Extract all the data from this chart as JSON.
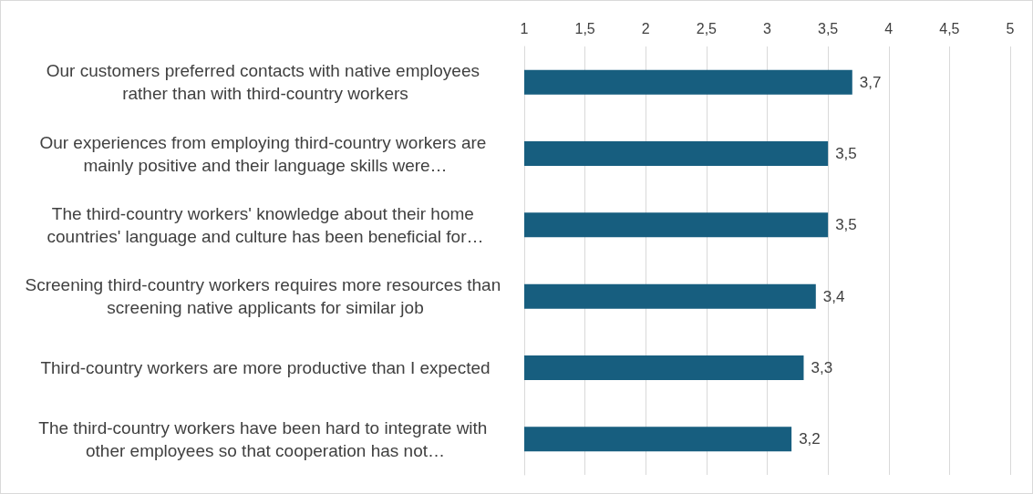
{
  "chart_data": {
    "type": "bar",
    "orientation": "horizontal",
    "categories": [
      "Our customers preferred contacts with native employees rather than with third-country workers",
      "Our experiences from employing third-country workers are mainly positive and their language skills were…",
      "The third-country workers' knowledge about their home countries' language and culture has been beneficial for…",
      "Screening third-country workers requires more resources than screening native applicants for similar job",
      "Third-country workers are more productive than I expected",
      "The third-country workers have been hard to integrate with other employees so that cooperation has not…"
    ],
    "values": [
      3.7,
      3.5,
      3.5,
      3.4,
      3.3,
      3.2
    ],
    "value_labels": [
      "3,7",
      "3,5",
      "3,5",
      "3,4",
      "3,3",
      "3,2"
    ],
    "color": "#175e7f",
    "xlim": [
      1,
      5
    ],
    "xticks": [
      1,
      {
        "value": 1.5,
        "label": "1,5"
      },
      2,
      {
        "value": 2.5,
        "label": "2,5"
      },
      3,
      {
        "value": 3.5,
        "label": "3,5"
      },
      4,
      {
        "value": 4.5,
        "label": "4,5"
      },
      5
    ],
    "grid": "x"
  }
}
